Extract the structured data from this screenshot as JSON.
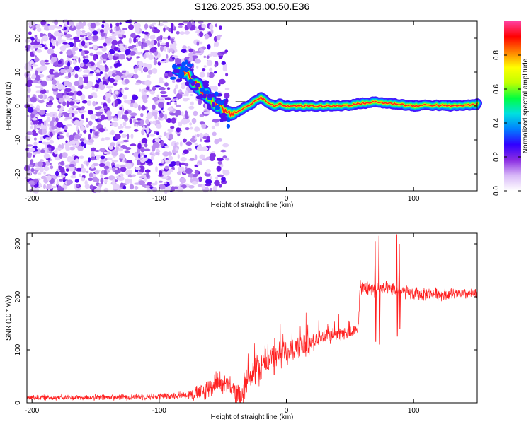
{
  "title": "S126.2025.353.00.50.E36",
  "chart_data": [
    {
      "type": "heatmap",
      "name": "spectrogram",
      "xlabel": "Height of straight line (km)",
      "ylabel": "Frequency (Hz)",
      "xlim": [
        -204,
        150
      ],
      "ylim": [
        -25,
        25
      ],
      "xticks": [
        -200,
        -100,
        0,
        100
      ],
      "xtick_labels": [
        "-200",
        "-100",
        "0",
        "100"
      ],
      "yticks": [
        -20,
        -10,
        0,
        10,
        20
      ],
      "ytick_labels": [
        "-20",
        "-10",
        "0",
        "10",
        "20"
      ],
      "noise_region_x": [
        -204,
        -46
      ],
      "reference_line_y": 0,
      "signal_track": {
        "x": [
          -85,
          -80,
          -75,
          -70,
          -65,
          -60,
          -55,
          -50,
          -45,
          -40,
          -35,
          -30,
          -25,
          -20,
          -15,
          -10,
          -5,
          0,
          10,
          20,
          30,
          40,
          50,
          60,
          70,
          80,
          90,
          100,
          110,
          120,
          130,
          140,
          150
        ],
        "y": [
          11,
          10,
          8,
          6,
          4,
          2,
          0.5,
          -1,
          -2.5,
          -2,
          -1,
          0,
          1.5,
          2.5,
          1,
          0,
          0.5,
          0,
          0,
          0,
          0,
          0,
          0.3,
          0.8,
          1.2,
          0.8,
          0.5,
          0,
          0.3,
          0.2,
          0,
          0.2,
          0.5
        ]
      },
      "colorbar": {
        "label": "Normalized spectral amplitude",
        "range": [
          0,
          1
        ],
        "ticks": [
          0.0,
          0.2,
          0.4,
          0.6,
          0.8
        ],
        "tick_labels": [
          "0.0",
          "0.2",
          "0.4",
          "0.6",
          "0.8"
        ],
        "colormap": [
          "#ffffff",
          "#d8b8f8",
          "#8a2be2",
          "#3000ff",
          "#0080ff",
          "#00e0e0",
          "#00ff40",
          "#c0ff00",
          "#ffff00",
          "#ff8000",
          "#ff0000",
          "#ff40a0"
        ]
      }
    },
    {
      "type": "line",
      "name": "snr",
      "xlabel": "Height of straight line (km)",
      "ylabel": "SNR (10 * v/v)",
      "xlim": [
        -204,
        150
      ],
      "ylim": [
        0,
        320
      ],
      "xticks": [
        -200,
        -100,
        0,
        100
      ],
      "xtick_labels": [
        "-200",
        "-100",
        "0",
        "100"
      ],
      "yticks": [
        0,
        100,
        200,
        300
      ],
      "ytick_labels": [
        "0",
        "100",
        "200",
        "300"
      ],
      "line_color": "#ff2020",
      "series_profile": {
        "x": [
          -204,
          -150,
          -100,
          -80,
          -65,
          -60,
          -55,
          -50,
          -45,
          -36,
          -30,
          -20,
          -10,
          0,
          10,
          20,
          30,
          40,
          56,
          58,
          62,
          70,
          80,
          90,
          100,
          120,
          150
        ],
        "y": [
          10,
          10,
          12,
          15,
          20,
          30,
          40,
          35,
          30,
          10,
          50,
          70,
          85,
          95,
          105,
          115,
          125,
          130,
          135,
          215,
          215,
          215,
          215,
          210,
          205,
          205,
          205
        ]
      },
      "noise_amplitude": {
        "x": [
          -204,
          -80,
          -65,
          -36,
          -30,
          0,
          40,
          56,
          58,
          150
        ],
        "y": [
          6,
          8,
          25,
          25,
          40,
          35,
          15,
          15,
          18,
          12
        ]
      },
      "spikes": [
        {
          "x": 70,
          "min": 115,
          "max": 305
        },
        {
          "x": 73,
          "min": 110,
          "max": 315
        },
        {
          "x": 87,
          "min": 125,
          "max": 318
        },
        {
          "x": 89,
          "min": 140,
          "max": 300
        }
      ]
    }
  ]
}
